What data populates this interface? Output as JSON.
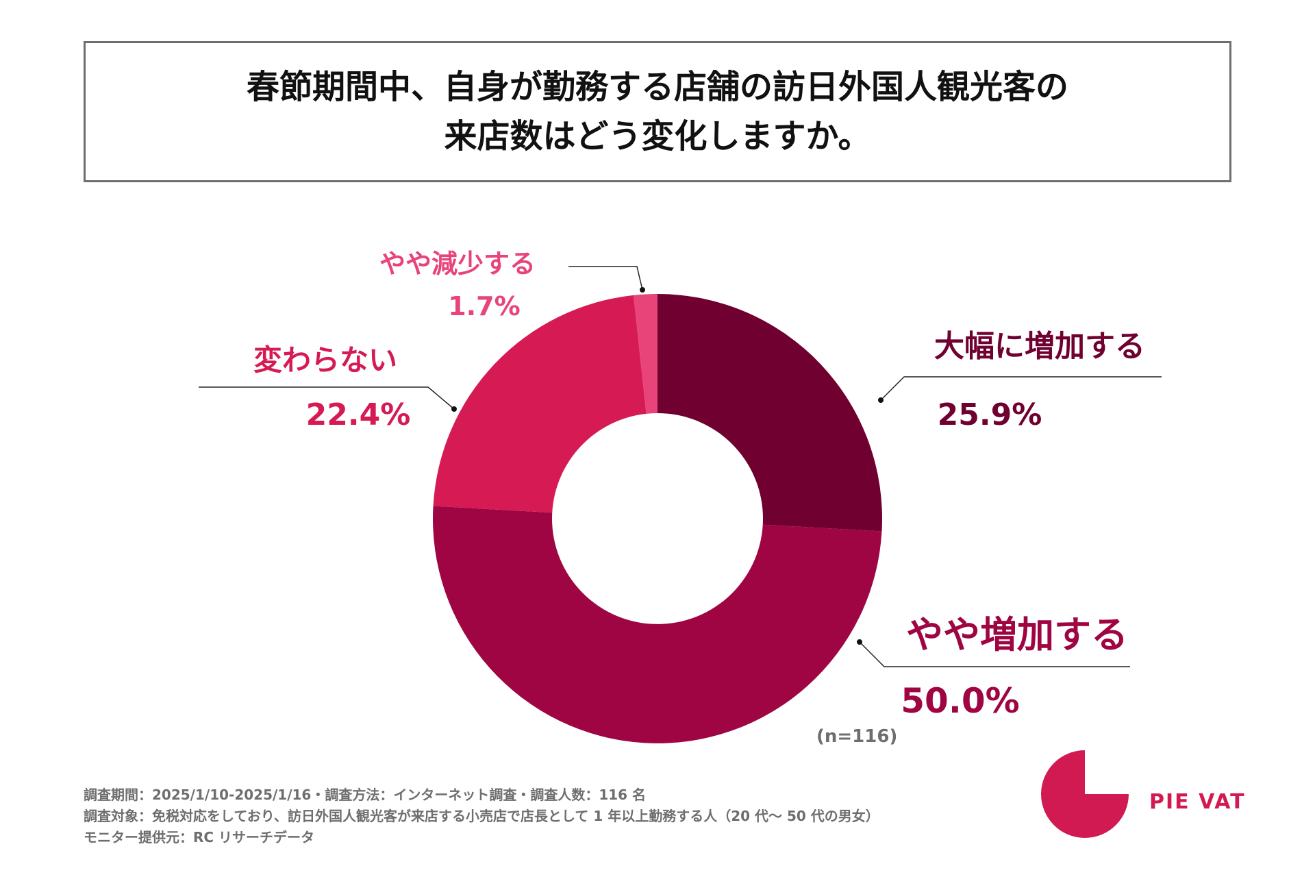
{
  "title": {
    "line1": "春節期間中、自身が勤務する店舗の訪日外国人観光客の",
    "line2": "来店数はどう変化しますか。"
  },
  "sample_note": "(n=116)",
  "footnotes": [
    "調査期間：2025/1/10-2025/1/16・調査方法：インターネット調査・調査人数：116 名",
    "調査対象：免税対応をしており、訪日外国人観光客が来店する小売店で店長として 1 年以上勤務する人（20 代～ 50 代の男女）",
    "モニター提供元：RC リサーチデータ"
  ],
  "brand": {
    "name": "PIE VAT",
    "color": "#d21a52"
  },
  "chart_data": {
    "type": "pie",
    "title": "春節期間中、自身が勤務する店舗の訪日外国人観光客の来店数はどう変化しますか。",
    "donut": true,
    "slices": [
      {
        "label": "大幅に増加する",
        "value": 25.9,
        "value_label": "25.9%",
        "color": "#700030"
      },
      {
        "label": "やや増加する",
        "value": 50.0,
        "value_label": "50.0%",
        "color": "#9e0542"
      },
      {
        "label": "変わらない",
        "value": 22.4,
        "value_label": "22.4%",
        "color": "#d61a53"
      },
      {
        "label": "やや減少する",
        "value": 1.7,
        "value_label": "1.7%",
        "color": "#e8447a"
      }
    ],
    "start_angle": "12 o'clock",
    "direction": "clockwise",
    "legend": "none"
  }
}
